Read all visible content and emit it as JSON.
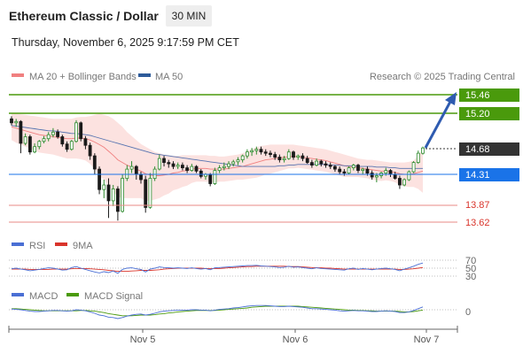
{
  "header": {
    "title": "Ethereum Classic / Dollar",
    "timeframe": "30 MIN",
    "timestamp": "Thursday, November 6, 2025 9:17:59 PM CET"
  },
  "legend": {
    "bb_label": "MA 20 + Bollinger Bands",
    "ma50_label": "MA 50",
    "copyright": "Research © 2025 Trading Central",
    "bb_color": "#f08080",
    "ma50_color": "#2e5b9a"
  },
  "levels": {
    "green": [
      {
        "value": "15.46",
        "color": "#4a9a0c"
      },
      {
        "value": "15.20",
        "color": "#4a9a0c"
      }
    ],
    "current": {
      "value": "14.68",
      "color": "#333333"
    },
    "blue": {
      "value": "14.31",
      "color": "#1a73e8"
    },
    "red": [
      {
        "value": "13.87",
        "color": "#d9342b"
      },
      {
        "value": "13.62",
        "color": "#d9342b"
      }
    ]
  },
  "chart_data": {
    "type": "candlestick",
    "y_range": [
      13.45,
      15.62
    ],
    "x_ticks": [
      "Nov 5",
      "Nov 6",
      "Nov 7"
    ],
    "candles": [
      [
        15.12,
        15.16,
        15.02,
        15.06
      ],
      [
        15.06,
        15.12,
        15.0,
        15.08
      ],
      [
        15.08,
        15.1,
        14.6,
        14.75
      ],
      [
        14.75,
        14.9,
        14.72,
        14.85
      ],
      [
        14.85,
        14.88,
        14.58,
        14.62
      ],
      [
        14.62,
        14.75,
        14.6,
        14.7
      ],
      [
        14.7,
        14.8,
        14.66,
        14.78
      ],
      [
        14.78,
        14.86,
        14.75,
        14.82
      ],
      [
        14.82,
        14.92,
        14.78,
        14.88
      ],
      [
        14.88,
        14.98,
        14.84,
        14.92
      ],
      [
        14.92,
        14.96,
        14.82,
        14.85
      ],
      [
        14.85,
        14.88,
        14.7,
        14.74
      ],
      [
        14.74,
        14.78,
        14.62,
        14.66
      ],
      [
        14.66,
        14.8,
        14.64,
        14.78
      ],
      [
        14.78,
        15.1,
        14.76,
        15.06
      ],
      [
        15.06,
        15.08,
        14.78,
        14.82
      ],
      [
        14.82,
        14.86,
        14.66,
        14.72
      ],
      [
        14.72,
        14.76,
        14.5,
        14.56
      ],
      [
        14.56,
        14.6,
        14.28,
        14.36
      ],
      [
        14.36,
        14.4,
        13.98,
        14.05
      ],
      [
        14.05,
        14.2,
        13.92,
        14.12
      ],
      [
        14.12,
        14.22,
        13.62,
        13.88
      ],
      [
        13.88,
        14.12,
        13.8,
        14.06
      ],
      [
        14.06,
        14.1,
        13.58,
        13.72
      ],
      [
        13.72,
        14.28,
        13.7,
        14.22
      ],
      [
        14.22,
        14.42,
        14.18,
        14.36
      ],
      [
        14.36,
        14.48,
        14.3,
        14.4
      ],
      [
        14.4,
        14.42,
        14.2,
        14.28
      ],
      [
        14.28,
        14.32,
        14.14,
        14.2
      ],
      [
        14.2,
        14.26,
        13.7,
        13.78
      ],
      [
        13.78,
        14.3,
        13.76,
        14.22
      ],
      [
        14.22,
        14.4,
        14.18,
        14.36
      ],
      [
        14.36,
        14.58,
        14.34,
        14.52
      ],
      [
        14.52,
        14.56,
        14.4,
        14.46
      ],
      [
        14.46,
        14.5,
        14.38,
        14.44
      ],
      [
        14.44,
        14.48,
        14.36,
        14.4
      ],
      [
        14.4,
        14.46,
        14.36,
        14.42
      ],
      [
        14.42,
        14.46,
        14.34,
        14.38
      ],
      [
        14.38,
        14.42,
        14.3,
        14.34
      ],
      [
        14.34,
        14.44,
        14.32,
        14.4
      ],
      [
        14.4,
        14.42,
        14.3,
        14.33
      ],
      [
        14.33,
        14.36,
        14.22,
        14.25
      ],
      [
        14.25,
        14.3,
        14.2,
        14.28
      ],
      [
        14.28,
        14.3,
        14.1,
        14.14
      ],
      [
        14.14,
        14.38,
        14.12,
        14.34
      ],
      [
        14.34,
        14.42,
        14.3,
        14.38
      ],
      [
        14.38,
        14.46,
        14.34,
        14.4
      ],
      [
        14.4,
        14.48,
        14.36,
        14.44
      ],
      [
        14.44,
        14.5,
        14.4,
        14.47
      ],
      [
        14.47,
        14.54,
        14.42,
        14.5
      ],
      [
        14.5,
        14.58,
        14.46,
        14.56
      ],
      [
        14.56,
        14.66,
        14.52,
        14.62
      ],
      [
        14.62,
        14.68,
        14.56,
        14.64
      ],
      [
        14.64,
        14.7,
        14.58,
        14.66
      ],
      [
        14.66,
        14.7,
        14.58,
        14.62
      ],
      [
        14.62,
        14.66,
        14.56,
        14.6
      ],
      [
        14.6,
        14.64,
        14.54,
        14.58
      ],
      [
        14.58,
        14.62,
        14.5,
        14.54
      ],
      [
        14.54,
        14.58,
        14.46,
        14.5
      ],
      [
        14.5,
        14.56,
        14.46,
        14.52
      ],
      [
        14.52,
        14.66,
        14.5,
        14.62
      ],
      [
        14.62,
        14.64,
        14.5,
        14.54
      ],
      [
        14.54,
        14.58,
        14.5,
        14.56
      ],
      [
        14.56,
        14.6,
        14.48,
        14.52
      ],
      [
        14.52,
        14.56,
        14.44,
        14.46
      ],
      [
        14.46,
        14.5,
        14.38,
        14.42
      ],
      [
        14.42,
        14.52,
        14.4,
        14.48
      ],
      [
        14.48,
        14.5,
        14.4,
        14.44
      ],
      [
        14.44,
        14.48,
        14.38,
        14.42
      ],
      [
        14.42,
        14.46,
        14.36,
        14.4
      ],
      [
        14.4,
        14.42,
        14.32,
        14.36
      ],
      [
        14.36,
        14.4,
        14.28,
        14.32
      ],
      [
        14.32,
        14.36,
        14.26,
        14.3
      ],
      [
        14.3,
        14.4,
        14.28,
        14.38
      ],
      [
        14.38,
        14.44,
        14.34,
        14.42
      ],
      [
        14.42,
        14.44,
        14.3,
        14.34
      ],
      [
        14.34,
        14.38,
        14.28,
        14.36
      ],
      [
        14.36,
        14.4,
        14.26,
        14.3
      ],
      [
        14.3,
        14.34,
        14.2,
        14.24
      ],
      [
        14.24,
        14.3,
        14.16,
        14.26
      ],
      [
        14.26,
        14.32,
        14.22,
        14.3
      ],
      [
        14.3,
        14.38,
        14.26,
        14.34
      ],
      [
        14.34,
        14.36,
        14.24,
        14.28
      ],
      [
        14.28,
        14.32,
        14.2,
        14.22
      ],
      [
        14.22,
        14.26,
        14.06,
        14.12
      ],
      [
        14.12,
        14.22,
        14.1,
        14.2
      ],
      [
        14.2,
        14.34,
        14.18,
        14.32
      ],
      [
        14.32,
        14.48,
        14.3,
        14.46
      ],
      [
        14.46,
        14.64,
        14.44,
        14.6
      ],
      [
        14.6,
        14.7,
        14.58,
        14.68
      ]
    ],
    "ma20": [
      15.0,
      14.98,
      14.96,
      14.94,
      14.92,
      14.9,
      14.88,
      14.87,
      14.86,
      14.85,
      14.84,
      14.83,
      14.82,
      14.82,
      14.83,
      14.83,
      14.82,
      14.8,
      14.77,
      14.73,
      14.69,
      14.63,
      14.57,
      14.5,
      14.46,
      14.42,
      14.39,
      14.36,
      14.33,
      14.29,
      14.27,
      14.26,
      14.26,
      14.27,
      14.28,
      14.3,
      14.31,
      14.33,
      14.34,
      14.36,
      14.37,
      14.37,
      14.37,
      14.36,
      14.36,
      14.36,
      14.36,
      14.37,
      14.38,
      14.39,
      14.4,
      14.42,
      14.44,
      14.46,
      14.48,
      14.5,
      14.51,
      14.52,
      14.53,
      14.54,
      14.55,
      14.55,
      14.55,
      14.54,
      14.53,
      14.52,
      14.51,
      14.5,
      14.49,
      14.47,
      14.45,
      14.43,
      14.41,
      14.4,
      14.39,
      14.38,
      14.37,
      14.36,
      14.35,
      14.34,
      14.33,
      14.33,
      14.32,
      14.31,
      14.29,
      14.28,
      14.28,
      14.29,
      14.31,
      14.33
    ],
    "ma50": [
      15.02,
      15.01,
      15.0,
      14.99,
      14.98,
      14.97,
      14.96,
      14.95,
      14.94,
      14.94,
      14.93,
      14.92,
      14.91,
      14.9,
      14.9,
      14.89,
      14.88,
      14.87,
      14.85,
      14.83,
      14.81,
      14.79,
      14.77,
      14.75,
      14.73,
      14.71,
      14.69,
      14.67,
      14.65,
      14.63,
      14.61,
      14.59,
      14.58,
      14.57,
      14.56,
      14.55,
      14.54,
      14.53,
      14.52,
      14.51,
      14.5,
      14.49,
      14.48,
      14.47,
      14.46,
      14.45,
      14.44,
      14.43,
      14.42,
      14.41,
      14.4,
      14.4,
      14.4,
      14.4,
      14.4,
      14.4,
      14.4,
      14.4,
      14.41,
      14.41,
      14.42,
      14.42,
      14.43,
      14.43,
      14.43,
      14.43,
      14.43,
      14.43,
      14.43,
      14.42,
      14.42,
      14.42,
      14.41,
      14.41,
      14.41,
      14.4,
      14.4,
      14.4,
      14.4,
      14.39,
      14.39,
      14.39,
      14.38,
      14.38,
      14.37,
      14.37,
      14.37,
      14.37,
      14.37,
      14.37
    ],
    "bb_upper": [
      15.2,
      15.2,
      15.19,
      15.18,
      15.17,
      15.16,
      15.15,
      15.14,
      15.13,
      15.12,
      15.12,
      15.12,
      15.12,
      15.12,
      15.14,
      15.15,
      15.15,
      15.16,
      15.18,
      15.2,
      15.18,
      15.16,
      15.12,
      15.06,
      15.0,
      14.92,
      14.86,
      14.8,
      14.74,
      14.7,
      14.66,
      14.62,
      14.6,
      14.58,
      14.57,
      14.56,
      14.56,
      14.57,
      14.57,
      14.57,
      14.57,
      14.57,
      14.57,
      14.56,
      14.56,
      14.55,
      14.55,
      14.56,
      14.57,
      14.58,
      14.6,
      14.63,
      14.66,
      14.69,
      14.71,
      14.72,
      14.73,
      14.73,
      14.73,
      14.73,
      14.73,
      14.73,
      14.72,
      14.71,
      14.7,
      14.69,
      14.68,
      14.67,
      14.66,
      14.64,
      14.62,
      14.6,
      14.58,
      14.56,
      14.54,
      14.52,
      14.51,
      14.5,
      14.5,
      14.49,
      14.48,
      14.47,
      14.46,
      14.46,
      14.46,
      14.46,
      14.47,
      14.49,
      14.56,
      14.66
    ],
    "bb_lower": [
      14.8,
      14.76,
      14.73,
      14.7,
      14.67,
      14.64,
      14.61,
      14.6,
      14.59,
      14.58,
      14.56,
      14.54,
      14.52,
      14.52,
      14.52,
      14.51,
      14.49,
      14.44,
      14.36,
      14.26,
      14.2,
      14.1,
      14.02,
      13.94,
      13.92,
      13.92,
      13.92,
      13.92,
      13.92,
      13.88,
      13.88,
      13.9,
      13.92,
      13.96,
      13.99,
      14.04,
      14.06,
      14.09,
      14.11,
      14.15,
      14.17,
      14.17,
      14.17,
      14.16,
      14.16,
      14.17,
      14.17,
      14.18,
      14.19,
      14.2,
      14.2,
      14.21,
      14.22,
      14.23,
      14.25,
      14.28,
      14.29,
      14.31,
      14.33,
      14.35,
      14.37,
      14.37,
      14.38,
      14.37,
      14.36,
      14.35,
      14.34,
      14.33,
      14.32,
      14.3,
      14.28,
      14.26,
      14.24,
      14.24,
      14.24,
      14.24,
      14.23,
      14.22,
      14.2,
      14.19,
      14.18,
      14.19,
      14.18,
      14.16,
      14.12,
      14.1,
      14.09,
      14.09,
      14.06,
      14.0
    ],
    "projection": {
      "from": 14.68,
      "to": 15.46
    },
    "rsi": {
      "label": "RSI",
      "ma_label": "9MA",
      "levels": [
        70,
        50,
        30
      ],
      "range": [
        0,
        100
      ],
      "color": "#4a6fd4",
      "ma_color": "#d9342b",
      "values": [
        48,
        50,
        47,
        45,
        42,
        44,
        46,
        49,
        51,
        50,
        47,
        44,
        45,
        52,
        55,
        50,
        46,
        42,
        38,
        35,
        39,
        36,
        41,
        34,
        46,
        50,
        51,
        48,
        46,
        38,
        47,
        50,
        54,
        52,
        51,
        50,
        51,
        50,
        49,
        51,
        49,
        47,
        49,
        45,
        51,
        52,
        53,
        54,
        55,
        56,
        57,
        58,
        58,
        59,
        57,
        56,
        55,
        54,
        52,
        53,
        56,
        53,
        54,
        52,
        50,
        48,
        51,
        49,
        48,
        47,
        46,
        45,
        44,
        48,
        50,
        46,
        49,
        47,
        45,
        47,
        49,
        50,
        48,
        46,
        42,
        47,
        51,
        56,
        62,
        66
      ],
      "ma_values": [
        47,
        47,
        47,
        47,
        46,
        46,
        46,
        46,
        46,
        47,
        47,
        47,
        47,
        48,
        49,
        49,
        49,
        48,
        47,
        46,
        45,
        43,
        42,
        40,
        40,
        40,
        41,
        42,
        43,
        43,
        43,
        44,
        45,
        47,
        48,
        49,
        50,
        50,
        50,
        50,
        50,
        50,
        49,
        49,
        49,
        49,
        50,
        51,
        52,
        53,
        54,
        55,
        55,
        56,
        56,
        56,
        56,
        56,
        56,
        56,
        55,
        55,
        55,
        54,
        53,
        52,
        51,
        51,
        50,
        50,
        49,
        48,
        47,
        47,
        47,
        47,
        47,
        47,
        47,
        47,
        47,
        47,
        47,
        47,
        46,
        46,
        47,
        48,
        50,
        52
      ]
    },
    "macd": {
      "label": "MACD",
      "signal_label": "MACD Signal",
      "level": "0",
      "color": "#4a6fd4",
      "signal_color": "#4a9a0c",
      "values": [
        0.02,
        0.01,
        0.0,
        -0.02,
        -0.04,
        -0.05,
        -0.05,
        -0.04,
        -0.03,
        -0.02,
        -0.02,
        -0.03,
        -0.04,
        -0.03,
        0.0,
        -0.01,
        -0.03,
        -0.06,
        -0.1,
        -0.15,
        -0.17,
        -0.21,
        -0.22,
        -0.25,
        -0.22,
        -0.18,
        -0.15,
        -0.13,
        -0.12,
        -0.15,
        -0.13,
        -0.1,
        -0.06,
        -0.04,
        -0.03,
        -0.02,
        -0.01,
        -0.01,
        -0.01,
        0.0,
        0.0,
        -0.01,
        -0.01,
        -0.03,
        -0.01,
        0.01,
        0.02,
        0.03,
        0.05,
        0.06,
        0.08,
        0.1,
        0.11,
        0.12,
        0.12,
        0.12,
        0.11,
        0.1,
        0.09,
        0.09,
        0.1,
        0.09,
        0.08,
        0.07,
        0.05,
        0.03,
        0.03,
        0.02,
        0.01,
        0.0,
        -0.01,
        -0.03,
        -0.04,
        -0.03,
        -0.02,
        -0.03,
        -0.03,
        -0.04,
        -0.05,
        -0.05,
        -0.04,
        -0.03,
        -0.04,
        -0.05,
        -0.08,
        -0.08,
        -0.06,
        -0.02,
        0.03,
        0.08
      ],
      "signal_values": [
        0.03,
        0.03,
        0.02,
        0.01,
        0.0,
        -0.01,
        -0.02,
        -0.03,
        -0.03,
        -0.03,
        -0.03,
        -0.03,
        -0.03,
        -0.03,
        -0.03,
        -0.02,
        -0.02,
        -0.03,
        -0.04,
        -0.06,
        -0.08,
        -0.11,
        -0.13,
        -0.15,
        -0.17,
        -0.17,
        -0.17,
        -0.16,
        -0.15,
        -0.15,
        -0.15,
        -0.14,
        -0.12,
        -0.11,
        -0.09,
        -0.08,
        -0.06,
        -0.05,
        -0.04,
        -0.03,
        -0.02,
        -0.02,
        -0.02,
        -0.02,
        -0.02,
        -0.01,
        0.0,
        0.01,
        0.02,
        0.03,
        0.04,
        0.05,
        0.07,
        0.08,
        0.09,
        0.1,
        0.1,
        0.1,
        0.1,
        0.1,
        0.1,
        0.1,
        0.1,
        0.09,
        0.08,
        0.07,
        0.06,
        0.05,
        0.04,
        0.03,
        0.02,
        0.01,
        0.0,
        -0.01,
        -0.01,
        -0.02,
        -0.02,
        -0.03,
        -0.03,
        -0.04,
        -0.04,
        -0.04,
        -0.04,
        -0.04,
        -0.05,
        -0.06,
        -0.06,
        -0.05,
        -0.03,
        -0.01
      ]
    }
  }
}
